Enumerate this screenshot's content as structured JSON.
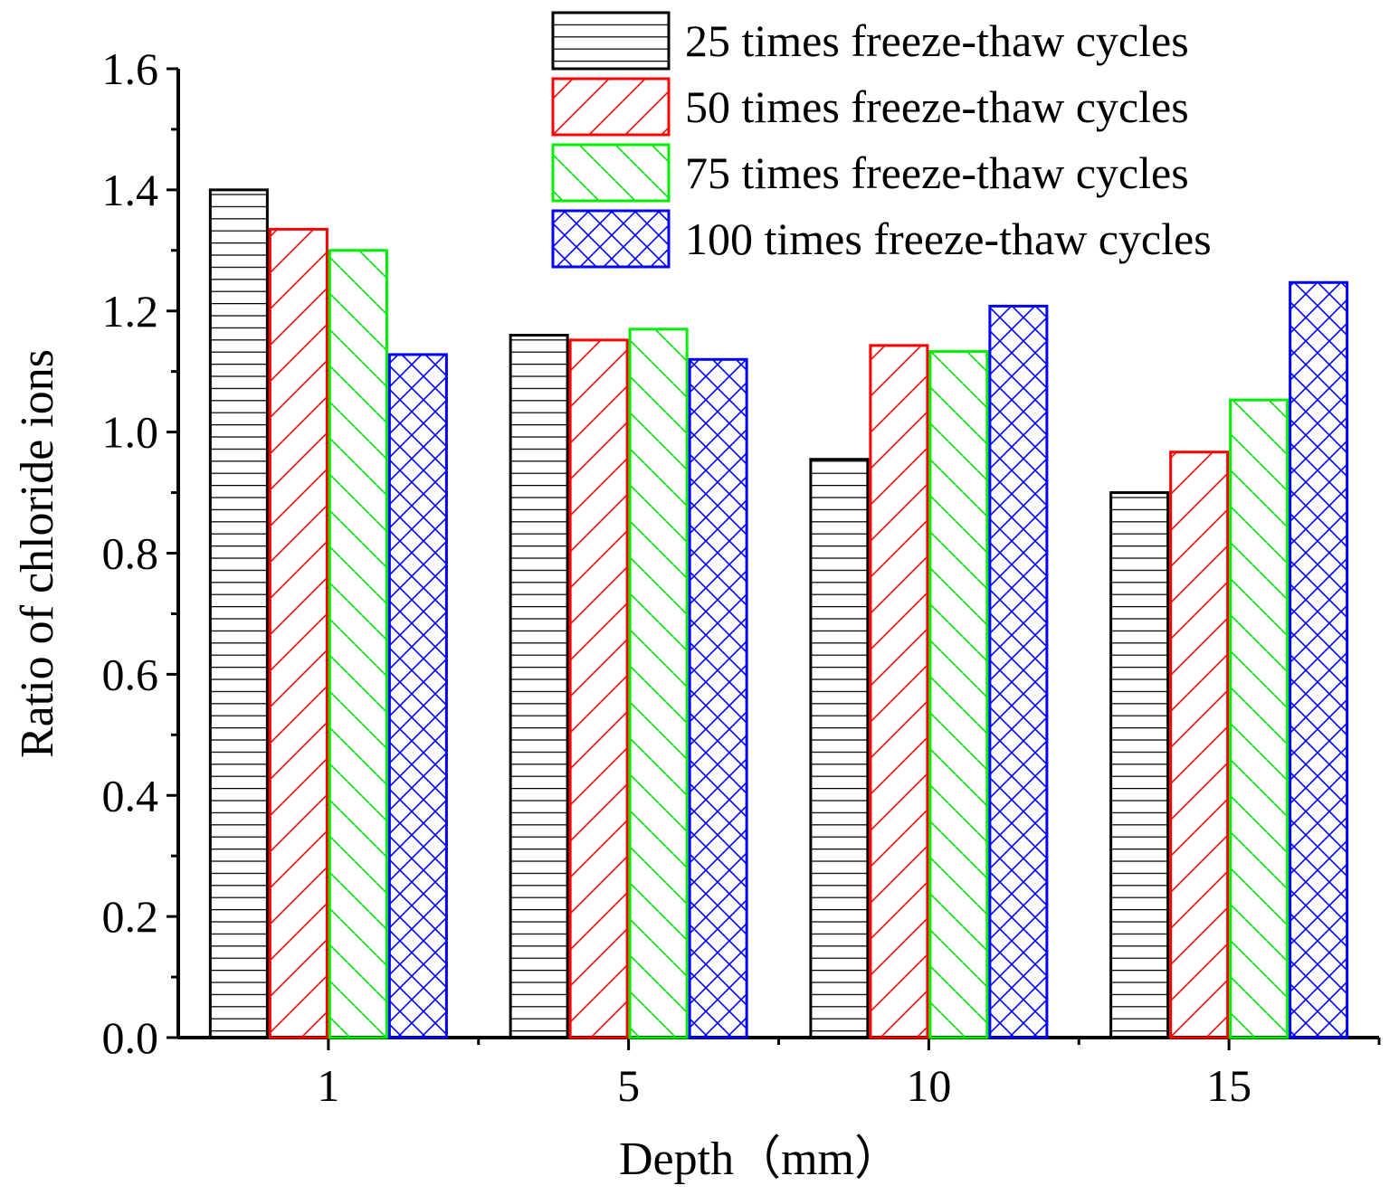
{
  "chart_data": {
    "type": "bar",
    "title": "",
    "xlabel": "Depth（mm）",
    "ylabel": "Ratio of chloride ions",
    "categories": [
      "1",
      "5",
      "10",
      "15"
    ],
    "ylim": [
      0.0,
      1.6
    ],
    "yticks": [
      "0.0",
      "0.2",
      "0.4",
      "0.6",
      "0.8",
      "1.0",
      "1.2",
      "1.4",
      "1.6"
    ],
    "legend_position": "top-right",
    "series": [
      {
        "name": "25 times freeze-thaw cycles",
        "color": "#000000",
        "pattern": "horizontal",
        "values": [
          1.4,
          1.16,
          0.955,
          0.9
        ]
      },
      {
        "name": "50 times freeze-thaw cycles",
        "color": "#ff0000",
        "pattern": "diagonal-up",
        "values": [
          1.335,
          1.152,
          1.143,
          0.967
        ]
      },
      {
        "name": "75 times freeze-thaw cycles",
        "color": "#00ee00",
        "pattern": "diagonal-down",
        "values": [
          1.3,
          1.17,
          1.133,
          1.053
        ]
      },
      {
        "name": "100 times freeze-thaw cycles",
        "color": "#0000ff",
        "pattern": "crosshatch",
        "values": [
          1.128,
          1.12,
          1.208,
          1.247
        ]
      }
    ]
  }
}
